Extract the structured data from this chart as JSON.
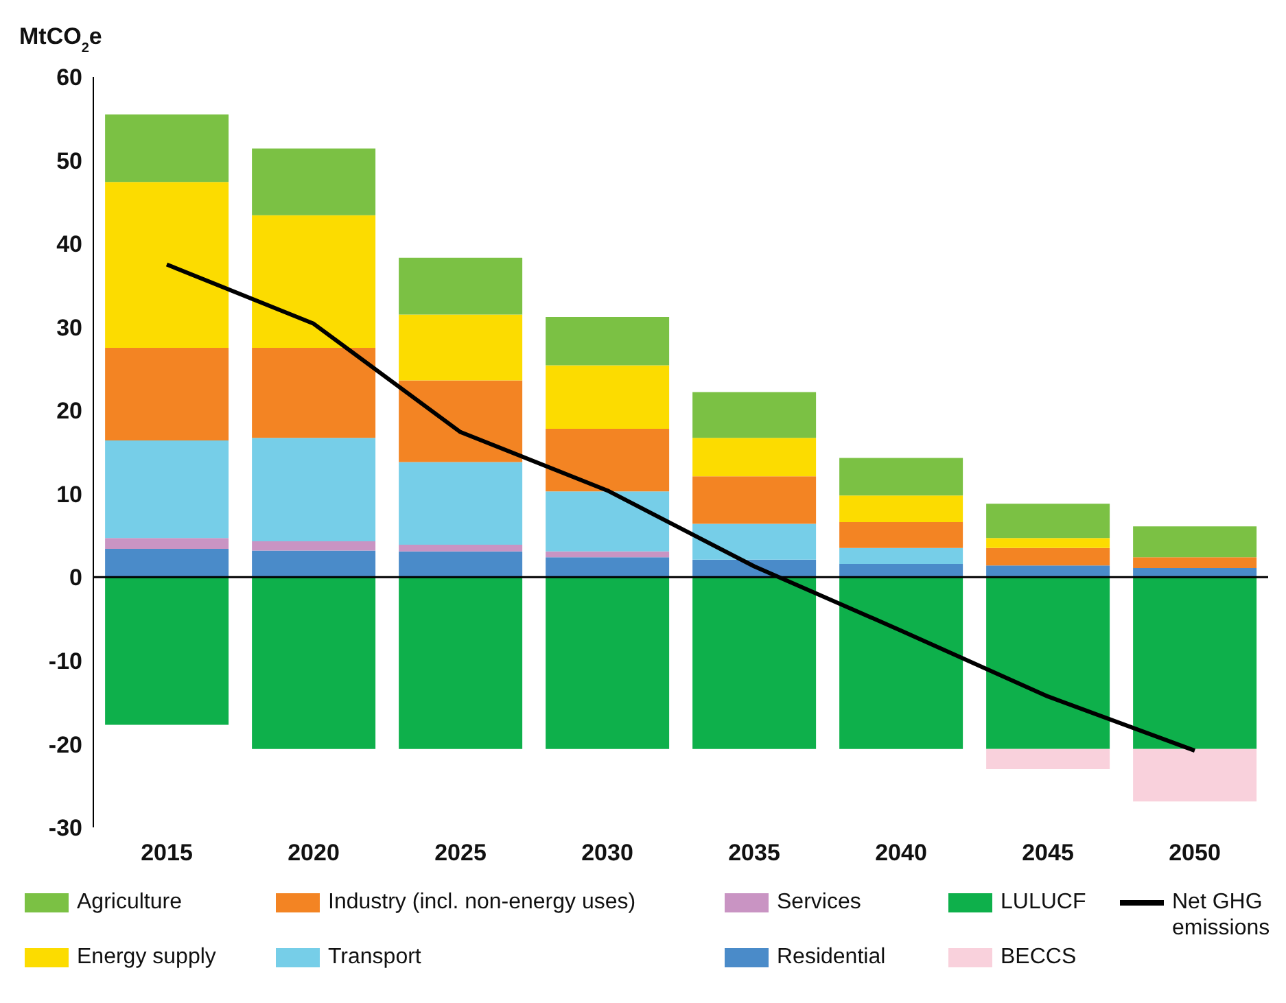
{
  "chart_data": {
    "type": "bar",
    "stacked": true,
    "ylabel": "MtCO$_{2}$e",
    "categories": [
      "2015",
      "2020",
      "2025",
      "2030",
      "2035",
      "2040",
      "2045",
      "2050"
    ],
    "series": [
      {
        "name": "Residential",
        "color": "#4a8bc9",
        "values": [
          3.4,
          3.2,
          3.1,
          2.4,
          2.1,
          1.6,
          1.4,
          1.1
        ]
      },
      {
        "name": "Services",
        "color": "#c994c3",
        "values": [
          1.3,
          1.1,
          0.8,
          0.7,
          0,
          0,
          0,
          0
        ]
      },
      {
        "name": "Transport",
        "color": "#76cee8",
        "values": [
          11.7,
          12.4,
          9.9,
          7.2,
          4.3,
          1.9,
          0,
          0
        ]
      },
      {
        "name": "Industry (incl. non-energy uses)",
        "color": "#f38423",
        "values": [
          11.1,
          10.8,
          9.8,
          7.5,
          5.7,
          3.1,
          2.1,
          1.3
        ]
      },
      {
        "name": "Energy supply",
        "color": "#fcdc00",
        "values": [
          19.9,
          15.9,
          7.9,
          7.6,
          4.6,
          3.2,
          1.2,
          0
        ]
      },
      {
        "name": "Agriculture",
        "color": "#7bc144",
        "values": [
          8.1,
          8.0,
          6.8,
          5.8,
          5.5,
          4.5,
          4.1,
          3.7
        ]
      },
      {
        "name": "LULUCF",
        "color": "#0eb04b",
        "values": [
          -17.7,
          -20.6,
          -20.6,
          -20.6,
          -20.6,
          -20.6,
          -20.6,
          -20.6
        ]
      },
      {
        "name": "BECCS",
        "color": "#f9d1dc",
        "values": [
          0,
          0,
          0,
          0,
          0,
          0,
          -2.4,
          -6.3
        ]
      },
      {
        "name": "Net GHG emissions",
        "type": "line",
        "color": "#000000",
        "values": [
          37.5,
          30.4,
          17.4,
          10.4,
          1.3,
          -6.4,
          -14.3,
          -20.8
        ]
      }
    ],
    "ylim": [
      -30,
      60
    ],
    "yticks": [
      -30,
      -20,
      -10,
      0,
      10,
      20,
      30,
      40,
      50,
      60
    ],
    "ref_lines": [
      {
        "axis": "y",
        "value": 0,
        "color": "#000000"
      }
    ],
    "grid": false,
    "legend": "bottom",
    "marker": "none"
  }
}
